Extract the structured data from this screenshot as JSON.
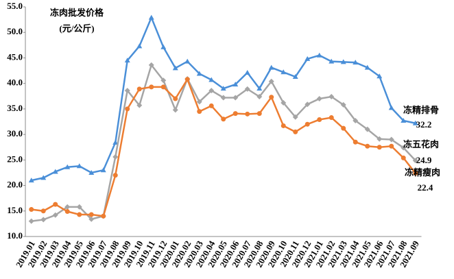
{
  "chart_data": {
    "type": "line",
    "title": "冻肉批发价格",
    "subtitle": "(元/公斤)",
    "categories": [
      "2019.01",
      "2019.02",
      "2019.03",
      "2019.04",
      "2019.05",
      "2019.06",
      "2019.07",
      "2019.08",
      "2019.09",
      "2019.10",
      "2019.11",
      "2019.12",
      "2020.01",
      "2020.02",
      "2020.03",
      "2020.04",
      "2020.05",
      "2020.06",
      "2020.07",
      "2020.08",
      "2020.09",
      "2020.10",
      "2020.11",
      "2020.12",
      "2021.01",
      "2021.02",
      "2021.03",
      "2021.04",
      "2021.05",
      "2021.06",
      "2021.07",
      "2021.08",
      "2021.09"
    ],
    "series": [
      {
        "name": "冻精排骨",
        "color": "#4a8fd8",
        "marker": "triangle",
        "values": [
          21.0,
          21.5,
          22.7,
          23.6,
          23.8,
          22.5,
          23.0,
          28.4,
          44.5,
          47.3,
          52.9,
          47.1,
          43.0,
          44.3,
          41.9,
          40.7,
          39.0,
          39.8,
          42.1,
          39.0,
          43.1,
          42.2,
          41.3,
          44.8,
          45.5,
          44.3,
          44.2,
          44.1,
          43.1,
          41.4,
          35.2,
          32.7,
          32.2
        ]
      },
      {
        "name": "冻五花肉",
        "color": "#a5a5a5",
        "marker": "diamond",
        "values": [
          13.0,
          13.3,
          14.2,
          15.8,
          15.8,
          13.4,
          14.0,
          25.6,
          38.6,
          35.7,
          43.6,
          40.6,
          34.8,
          40.9,
          36.4,
          38.6,
          37.2,
          37.2,
          38.9,
          37.4,
          40.4,
          36.2,
          33.4,
          35.9,
          37.0,
          37.4,
          35.8,
          32.7,
          31.0,
          29.1,
          29.0,
          27.4,
          24.9
        ]
      },
      {
        "name": "冻精瘦肉",
        "color": "#ed7d31",
        "marker": "circle",
        "values": [
          15.3,
          15.0,
          16.3,
          14.9,
          14.3,
          14.3,
          14.0,
          22.0,
          35.0,
          38.9,
          39.3,
          39.3,
          37.0,
          40.8,
          34.5,
          35.6,
          33.0,
          34.1,
          34.0,
          34.1,
          37.3,
          31.7,
          30.5,
          32.0,
          32.9,
          33.3,
          31.2,
          28.5,
          27.7,
          27.5,
          27.7,
          25.4,
          22.4
        ]
      }
    ],
    "ylim": [
      10,
      55
    ],
    "yticks": [
      {
        "value": 10,
        "label": "10.0"
      },
      {
        "value": 15,
        "label": "15.0"
      },
      {
        "value": 20,
        "label": "20.0"
      },
      {
        "value": 25,
        "label": "25.0"
      },
      {
        "value": 30,
        "label": "30.0"
      },
      {
        "value": 35,
        "label": "35.0"
      },
      {
        "value": 40,
        "label": "40.0"
      },
      {
        "value": 45,
        "label": "45.0"
      },
      {
        "value": 50,
        "label": "50.0"
      },
      {
        "value": 55,
        "label": "55.0"
      }
    ],
    "grid": false
  }
}
